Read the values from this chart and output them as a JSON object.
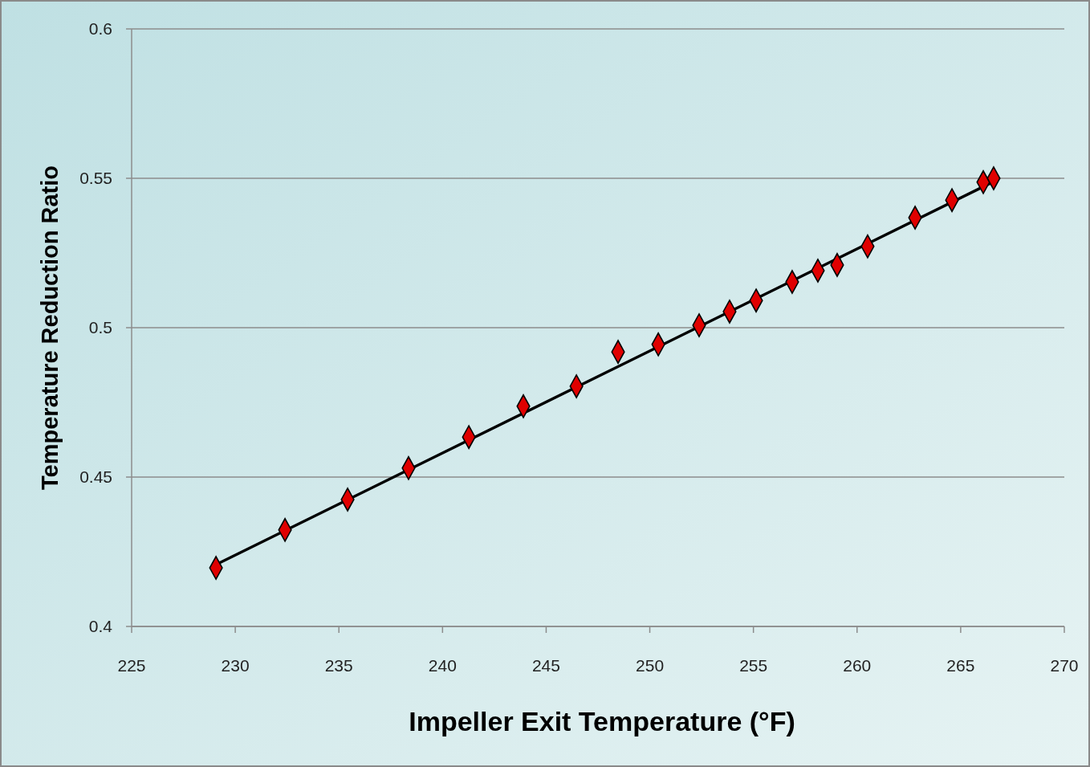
{
  "chart_data": {
    "type": "scatter",
    "xlabel": "Impeller Exit Temperature (°F)",
    "ylabel": "Temperature Reduction Ratio",
    "xlim": [
      225,
      270
    ],
    "xticks": [
      225,
      230,
      235,
      240,
      245,
      250,
      255,
      260,
      265,
      270
    ],
    "ylim": [
      0.4,
      0.6
    ],
    "yticks": [
      0.4,
      0.45,
      0.5,
      0.55,
      0.6
    ],
    "grid": "y",
    "series": [
      {
        "color": "#e00000",
        "marker": "diamond",
        "x": [
          229.07,
          232.4,
          235.42,
          238.36,
          241.27,
          243.9,
          246.46,
          248.47,
          250.41,
          252.38,
          253.85,
          255.13,
          256.87,
          258.11,
          259.04,
          260.51,
          262.8,
          264.58,
          266.09,
          266.59
        ],
        "values": [
          0.4196,
          0.4323,
          0.4425,
          0.453,
          0.4634,
          0.4737,
          0.4804,
          0.4919,
          0.4944,
          0.5008,
          0.5054,
          0.5091,
          0.5153,
          0.5191,
          0.521,
          0.5272,
          0.5368,
          0.5427,
          0.5487,
          0.55
        ]
      },
      {
        "type": "line",
        "color": "#000000",
        "line_style": "solid",
        "x": [
          229.07,
          266.59
        ],
        "values": [
          0.4207,
          0.5489
        ]
      }
    ]
  }
}
